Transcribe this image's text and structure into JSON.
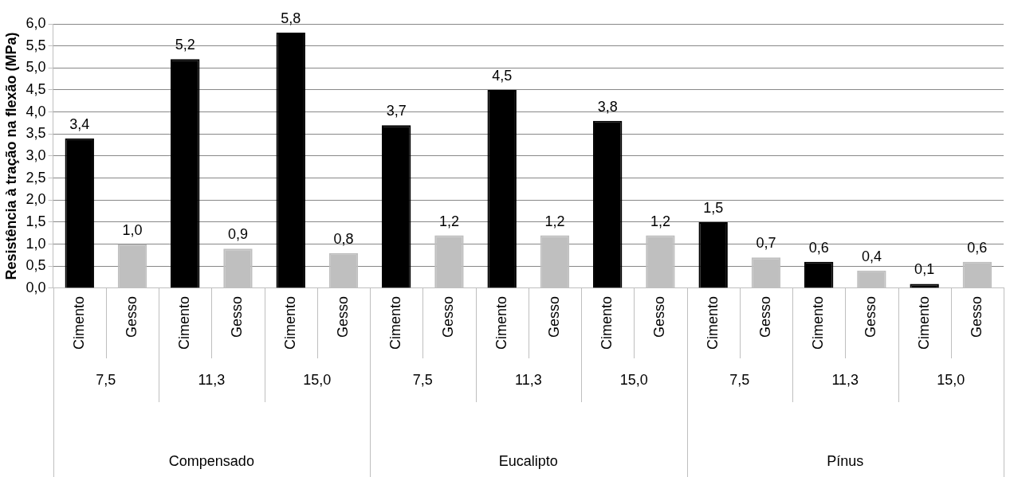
{
  "chart_data": {
    "type": "bar",
    "ylabel": "Resistência à tração na flexão (MPa)",
    "categories": [
      "Cimento",
      "Gesso",
      "Cimento",
      "Gesso",
      "Cimento",
      "Gesso",
      "Cimento",
      "Gesso",
      "Cimento",
      "Gesso",
      "Cimento",
      "Gesso",
      "Cimento",
      "Gesso",
      "Cimento",
      "Gesso",
      "Cimento",
      "Gesso"
    ],
    "values": [
      3.4,
      1.0,
      5.2,
      0.9,
      5.8,
      0.8,
      3.7,
      1.2,
      4.5,
      1.2,
      3.8,
      1.2,
      1.5,
      0.7,
      0.6,
      0.4,
      0.1,
      0.6
    ],
    "value_labels": [
      "3,4",
      "1,0",
      "5,2",
      "0,9",
      "5,8",
      "0,8",
      "3,7",
      "1,2",
      "4,5",
      "1,2",
      "3,8",
      "1,2",
      "1,5",
      "0,7",
      "0,6",
      "0,4",
      "0,1",
      "0,6"
    ],
    "colors": [
      "#000000",
      "#bfbfbf",
      "#000000",
      "#bfbfbf",
      "#000000",
      "#bfbfbf",
      "#000000",
      "#bfbfbf",
      "#000000",
      "#bfbfbf",
      "#000000",
      "#bfbfbf",
      "#000000",
      "#bfbfbf",
      "#000000",
      "#bfbfbf",
      "#000000",
      "#bfbfbf"
    ],
    "annotations": [
      "7,5",
      "11,3",
      "15,0",
      "7,5",
      "11,3",
      "15,0",
      "7,5",
      "11,3",
      "15,0",
      "Compensado",
      "Eucalipto",
      "Pínus"
    ],
    "ylim": [
      0,
      6
    ],
    "yticks": [
      {
        "value": 0,
        "label": "0,0"
      },
      {
        "value": 0.5,
        "label": "0,5"
      },
      {
        "value": 1,
        "label": "1,0"
      },
      {
        "value": 1.5,
        "label": "1,5"
      },
      {
        "value": 2,
        "label": "2,0"
      },
      {
        "value": 2.5,
        "label": "2,5"
      },
      {
        "value": 3,
        "label": "3,0"
      },
      {
        "value": 3.5,
        "label": "3,5"
      },
      {
        "value": 4,
        "label": "4,0"
      },
      {
        "value": 4.5,
        "label": "4,5"
      },
      {
        "value": 5,
        "label": "5,0"
      },
      {
        "value": 5.5,
        "label": "5,5"
      },
      {
        "value": 6,
        "label": "6,0"
      }
    ],
    "grid": "y",
    "legend": false
  }
}
